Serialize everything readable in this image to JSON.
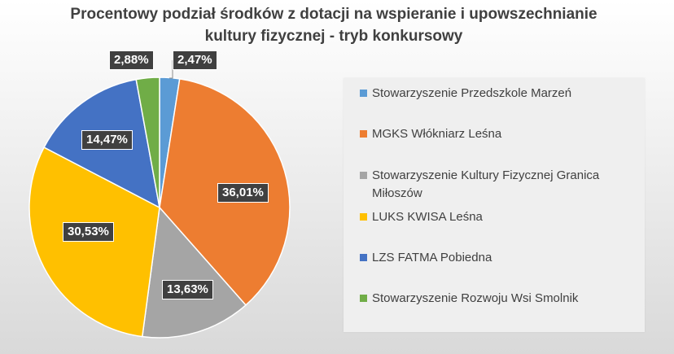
{
  "chart_data": {
    "type": "pie",
    "title_line1": "Procentowy podział środków z dotacji na wspieranie i upowszechnianie",
    "title_line2": "kultury fizycznej - tryb konkursowy",
    "legend_position": "right",
    "slices": [
      {
        "label": "Stowarzyszenie Przedszkole Marzeń",
        "value": 2.47,
        "value_label": "2,47%",
        "color": "#5B9BD5"
      },
      {
        "label": "MGKS Włókniarz Leśna",
        "value": 36.01,
        "value_label": "36,01%",
        "color": "#ED7D31"
      },
      {
        "label": "Stowarzyszenie Kultury Fizycznej Granica Miłoszów",
        "value": 13.63,
        "value_label": "13,63%",
        "color": "#A5A5A5"
      },
      {
        "label": "LUKS KWISA Leśna",
        "value": 30.53,
        "value_label": "30,53%",
        "color": "#FFC000"
      },
      {
        "label": "LZS FATMA Pobiedna",
        "value": 14.47,
        "value_label": "14,47%",
        "color": "#4472C4"
      },
      {
        "label": "Stowarzyszenie Rozwoju Wsi Smolnik",
        "value": 2.88,
        "value_label": "2,88%",
        "color": "#70AD47"
      }
    ]
  }
}
